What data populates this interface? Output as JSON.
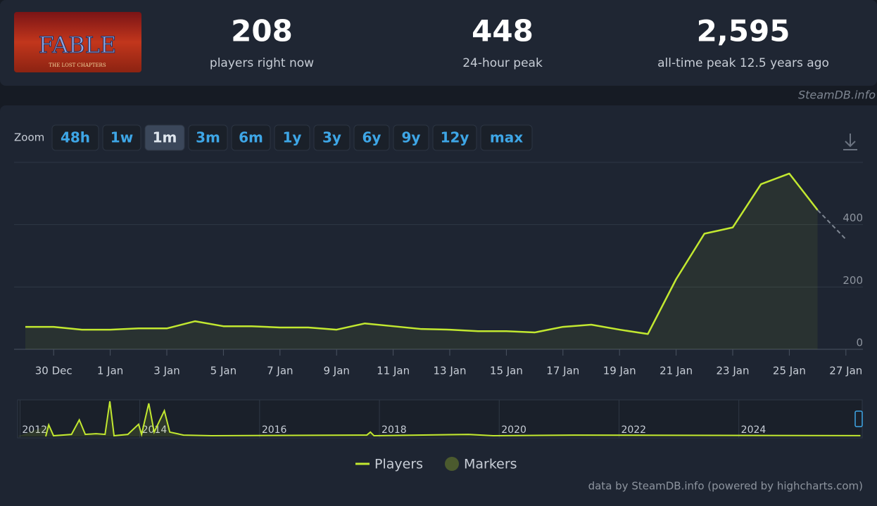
{
  "logo": {
    "title": "FABLE",
    "subtitle": "THE LOST CHAPTERS"
  },
  "stats": [
    {
      "value": "208",
      "label": "players right now"
    },
    {
      "value": "448",
      "label": "24-hour peak"
    },
    {
      "value": "2,595",
      "label": "all-time peak 12.5 years ago"
    }
  ],
  "watermark": "SteamDB.info",
  "zoom": {
    "label": "Zoom",
    "options": [
      "48h",
      "1w",
      "1m",
      "3m",
      "6m",
      "1y",
      "3y",
      "6y",
      "9y",
      "12y",
      "max"
    ],
    "active": "1m"
  },
  "chart_data": {
    "type": "line",
    "categories": [
      null,
      "30 Dec",
      null,
      "1 Jan",
      null,
      "3 Jan",
      null,
      "5 Jan",
      null,
      "7 Jan",
      null,
      "9 Jan",
      null,
      "11 Jan",
      null,
      "13 Jan",
      null,
      "15 Jan",
      null,
      "17 Jan",
      null,
      "19 Jan",
      null,
      "21 Jan",
      null,
      "23 Jan",
      null,
      "25 Jan",
      null,
      "27 Jan"
    ],
    "series": [
      {
        "name": "Players",
        "color": "#c2e830",
        "values": [
          72,
          72,
          63,
          63,
          67,
          67,
          90,
          74,
          74,
          70,
          70,
          63,
          83,
          74,
          65,
          63,
          58,
          58,
          54,
          72,
          79,
          63,
          49,
          225,
          371,
          391,
          530,
          564,
          447,
          353
        ]
      }
    ],
    "ylim": [
      0,
      600
    ],
    "yticks": [
      0,
      200,
      400
    ],
    "grid": true,
    "legend_markers": {
      "name": "Markers",
      "color": "#4b5a2e"
    },
    "navigator": {
      "xlim": [
        2011.96,
        2026.06
      ],
      "xticks": [
        2012,
        2014,
        2016,
        2018,
        2020,
        2022,
        2024
      ],
      "ylim": [
        0,
        2700
      ],
      "x": [
        2012.48,
        2012.56,
        2012.86,
        2012.99,
        2013.09,
        2013.27,
        2013.42,
        2013.5,
        2013.57,
        2013.8,
        2013.98,
        2014.03,
        2014.15,
        2014.24,
        2014.41,
        2014.5,
        2014.73,
        2015.2,
        2017.79,
        2017.85,
        2017.91,
        2019.49,
        2019.9,
        2021.25,
        2026.03
      ],
      "values": [
        850,
        50,
        150,
        1220,
        150,
        200,
        150,
        2595,
        50,
        150,
        900,
        150,
        2440,
        320,
        1900,
        320,
        100,
        50,
        100,
        320,
        50,
        150,
        50,
        100,
        60
      ]
    }
  },
  "credits": "data by SteamDB.info (powered by highcharts.com)"
}
